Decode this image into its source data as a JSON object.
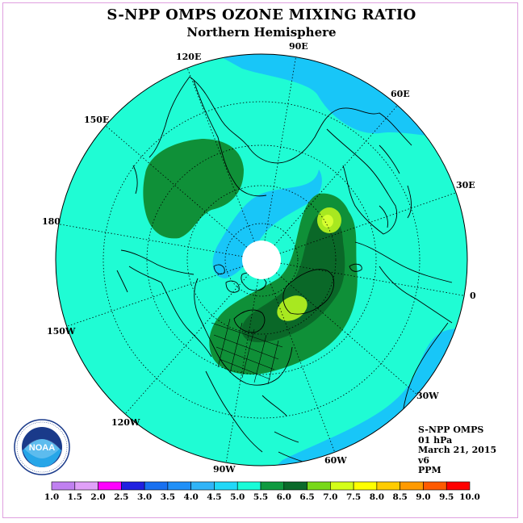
{
  "header": {
    "title": "S-NPP OMPS OZONE MIXING RATIO",
    "subtitle": "Northern Hemisphere"
  },
  "map": {
    "projection": "north polar stereographic",
    "longitude_labels": [
      "120E",
      "90E",
      "60E",
      "150E",
      "30E",
      "180",
      "0",
      "150W",
      "30W",
      "120W",
      "90W",
      "60W"
    ]
  },
  "info": {
    "instrument": "S-NPP OMPS",
    "level": "01 hPa",
    "date": "March 21, 2015",
    "version": "v6",
    "units": "PPM"
  },
  "logo": {
    "text": "NOAA",
    "ring_text": "NATIONAL OCEANIC AND ATMOSPHERIC ADMINISTRATION · U.S. DEPARTMENT OF COMMERCE"
  },
  "colorbar": {
    "ticks": [
      "1.0",
      "1.5",
      "2.0",
      "2.5",
      "3.0",
      "3.5",
      "4.0",
      "4.5",
      "5.0",
      "5.5",
      "6.0",
      "6.5",
      "7.0",
      "7.5",
      "8.0",
      "8.5",
      "9.0",
      "9.5",
      "10.0"
    ],
    "colors": [
      "#c080f0",
      "#e0a0f8",
      "#ff00ff",
      "#2020e0",
      "#1870f0",
      "#2090f8",
      "#30b4f8",
      "#20d8f8",
      "#18fcd8",
      "#0f9a40",
      "#0a6a2a",
      "#78d818",
      "#d4ff18",
      "#ffff00",
      "#ffcc00",
      "#ff9a00",
      "#ff5a00",
      "#ff0000",
      "#8c4a2a"
    ]
  },
  "field_colors": {
    "ocean_background": "#1ffcd4",
    "blue_band": "#18c6f8",
    "green_mid": "#0f9038",
    "green_dark": "#0a6828",
    "yellow_green": "#a8e820",
    "pole_hole": "#ffffff"
  }
}
